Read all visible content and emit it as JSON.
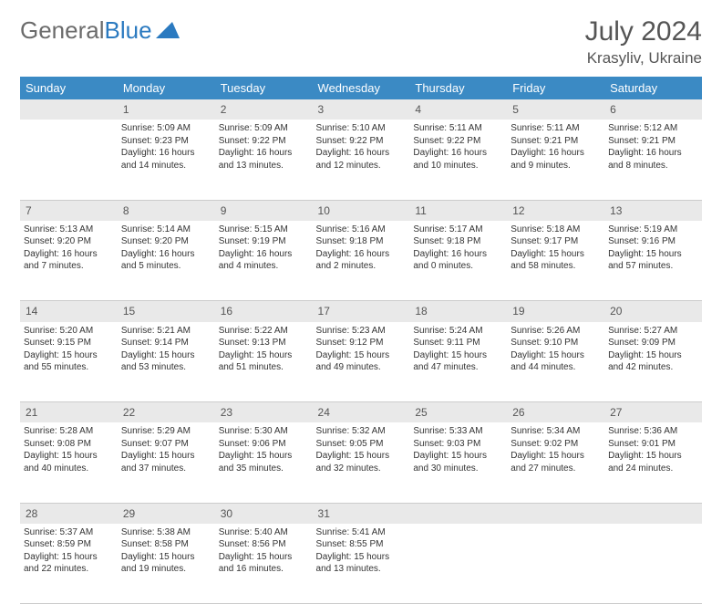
{
  "brand": {
    "part1": "General",
    "part2": "Blue"
  },
  "title": "July 2024",
  "location": "Krasyliv, Ukraine",
  "colors": {
    "header_bg": "#3b8ac4",
    "header_text": "#ffffff",
    "daynum_bg": "#e9e9e9",
    "text": "#333333",
    "border": "#cccccc"
  },
  "weekdays": [
    "Sunday",
    "Monday",
    "Tuesday",
    "Wednesday",
    "Thursday",
    "Friday",
    "Saturday"
  ],
  "weeks": [
    [
      null,
      {
        "n": "1",
        "sr": "5:09 AM",
        "ss": "9:23 PM",
        "dl": "16 hours and 14 minutes."
      },
      {
        "n": "2",
        "sr": "5:09 AM",
        "ss": "9:22 PM",
        "dl": "16 hours and 13 minutes."
      },
      {
        "n": "3",
        "sr": "5:10 AM",
        "ss": "9:22 PM",
        "dl": "16 hours and 12 minutes."
      },
      {
        "n": "4",
        "sr": "5:11 AM",
        "ss": "9:22 PM",
        "dl": "16 hours and 10 minutes."
      },
      {
        "n": "5",
        "sr": "5:11 AM",
        "ss": "9:21 PM",
        "dl": "16 hours and 9 minutes."
      },
      {
        "n": "6",
        "sr": "5:12 AM",
        "ss": "9:21 PM",
        "dl": "16 hours and 8 minutes."
      }
    ],
    [
      {
        "n": "7",
        "sr": "5:13 AM",
        "ss": "9:20 PM",
        "dl": "16 hours and 7 minutes."
      },
      {
        "n": "8",
        "sr": "5:14 AM",
        "ss": "9:20 PM",
        "dl": "16 hours and 5 minutes."
      },
      {
        "n": "9",
        "sr": "5:15 AM",
        "ss": "9:19 PM",
        "dl": "16 hours and 4 minutes."
      },
      {
        "n": "10",
        "sr": "5:16 AM",
        "ss": "9:18 PM",
        "dl": "16 hours and 2 minutes."
      },
      {
        "n": "11",
        "sr": "5:17 AM",
        "ss": "9:18 PM",
        "dl": "16 hours and 0 minutes."
      },
      {
        "n": "12",
        "sr": "5:18 AM",
        "ss": "9:17 PM",
        "dl": "15 hours and 58 minutes."
      },
      {
        "n": "13",
        "sr": "5:19 AM",
        "ss": "9:16 PM",
        "dl": "15 hours and 57 minutes."
      }
    ],
    [
      {
        "n": "14",
        "sr": "5:20 AM",
        "ss": "9:15 PM",
        "dl": "15 hours and 55 minutes."
      },
      {
        "n": "15",
        "sr": "5:21 AM",
        "ss": "9:14 PM",
        "dl": "15 hours and 53 minutes."
      },
      {
        "n": "16",
        "sr": "5:22 AM",
        "ss": "9:13 PM",
        "dl": "15 hours and 51 minutes."
      },
      {
        "n": "17",
        "sr": "5:23 AM",
        "ss": "9:12 PM",
        "dl": "15 hours and 49 minutes."
      },
      {
        "n": "18",
        "sr": "5:24 AM",
        "ss": "9:11 PM",
        "dl": "15 hours and 47 minutes."
      },
      {
        "n": "19",
        "sr": "5:26 AM",
        "ss": "9:10 PM",
        "dl": "15 hours and 44 minutes."
      },
      {
        "n": "20",
        "sr": "5:27 AM",
        "ss": "9:09 PM",
        "dl": "15 hours and 42 minutes."
      }
    ],
    [
      {
        "n": "21",
        "sr": "5:28 AM",
        "ss": "9:08 PM",
        "dl": "15 hours and 40 minutes."
      },
      {
        "n": "22",
        "sr": "5:29 AM",
        "ss": "9:07 PM",
        "dl": "15 hours and 37 minutes."
      },
      {
        "n": "23",
        "sr": "5:30 AM",
        "ss": "9:06 PM",
        "dl": "15 hours and 35 minutes."
      },
      {
        "n": "24",
        "sr": "5:32 AM",
        "ss": "9:05 PM",
        "dl": "15 hours and 32 minutes."
      },
      {
        "n": "25",
        "sr": "5:33 AM",
        "ss": "9:03 PM",
        "dl": "15 hours and 30 minutes."
      },
      {
        "n": "26",
        "sr": "5:34 AM",
        "ss": "9:02 PM",
        "dl": "15 hours and 27 minutes."
      },
      {
        "n": "27",
        "sr": "5:36 AM",
        "ss": "9:01 PM",
        "dl": "15 hours and 24 minutes."
      }
    ],
    [
      {
        "n": "28",
        "sr": "5:37 AM",
        "ss": "8:59 PM",
        "dl": "15 hours and 22 minutes."
      },
      {
        "n": "29",
        "sr": "5:38 AM",
        "ss": "8:58 PM",
        "dl": "15 hours and 19 minutes."
      },
      {
        "n": "30",
        "sr": "5:40 AM",
        "ss": "8:56 PM",
        "dl": "15 hours and 16 minutes."
      },
      {
        "n": "31",
        "sr": "5:41 AM",
        "ss": "8:55 PM",
        "dl": "15 hours and 13 minutes."
      },
      null,
      null,
      null
    ]
  ],
  "labels": {
    "sunrise": "Sunrise: ",
    "sunset": "Sunset: ",
    "daylight": "Daylight: "
  }
}
